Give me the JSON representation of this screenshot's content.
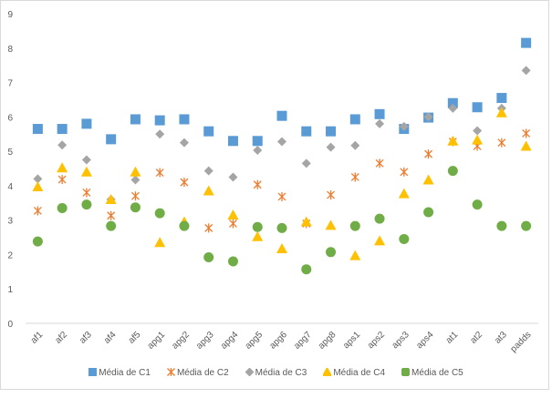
{
  "chart_data": {
    "type": "scatter",
    "title": "",
    "xlabel": "",
    "ylabel": "",
    "ylim": [
      0,
      9
    ],
    "yticks": [
      0,
      1,
      2,
      3,
      4,
      5,
      6,
      7,
      8,
      9
    ],
    "grid": false,
    "legend_position": "bottom",
    "categories": [
      "af1",
      "af2",
      "af3",
      "af4",
      "af5",
      "apg1",
      "apg2",
      "apg3",
      "apg4",
      "apg5",
      "apg6",
      "apg7",
      "apg8",
      "aps1",
      "aps2",
      "aps3",
      "aps4",
      "at1",
      "at2",
      "at3",
      "padds"
    ],
    "series": [
      {
        "name": "Média de C1",
        "marker": "square",
        "color": "#5b9bd5",
        "values": [
          5.65,
          5.65,
          5.8,
          5.35,
          5.93,
          5.9,
          5.93,
          5.58,
          5.3,
          5.3,
          6.03,
          5.58,
          5.58,
          5.93,
          6.08,
          5.65,
          5.98,
          6.4,
          6.28,
          6.55,
          8.15
        ]
      },
      {
        "name": "Média de C2",
        "marker": "star",
        "color": "#ed7d31",
        "values": [
          3.27,
          4.18,
          3.8,
          3.13,
          3.7,
          4.38,
          4.1,
          2.77,
          2.9,
          4.03,
          3.68,
          2.9,
          3.73,
          4.25,
          4.65,
          4.4,
          4.92,
          5.28,
          5.15,
          5.25,
          5.52
        ]
      },
      {
        "name": "Média de C3",
        "marker": "diamond",
        "color": "#a5a5a5",
        "values": [
          4.2,
          5.18,
          4.75,
          3.6,
          4.17,
          5.5,
          5.25,
          4.43,
          4.25,
          5.03,
          5.28,
          4.65,
          5.12,
          5.17,
          5.8,
          5.72,
          6.0,
          6.25,
          5.6,
          6.25,
          7.35
        ]
      },
      {
        "name": "Média de C4",
        "marker": "triangle",
        "color": "#ffc000",
        "values": [
          3.97,
          4.52,
          4.4,
          3.6,
          4.4,
          2.35,
          2.95,
          3.85,
          3.15,
          2.52,
          2.17,
          2.95,
          2.85,
          1.97,
          2.4,
          3.77,
          4.17,
          5.3,
          5.33,
          6.12,
          5.15
        ]
      },
      {
        "name": "Média de C5",
        "marker": "circle",
        "color": "#70ad47",
        "values": [
          2.38,
          3.35,
          3.45,
          2.83,
          3.37,
          3.2,
          2.83,
          1.92,
          1.8,
          2.8,
          2.77,
          1.57,
          2.07,
          2.83,
          3.04,
          2.45,
          3.23,
          4.43,
          3.45,
          2.83,
          2.83
        ]
      }
    ]
  }
}
